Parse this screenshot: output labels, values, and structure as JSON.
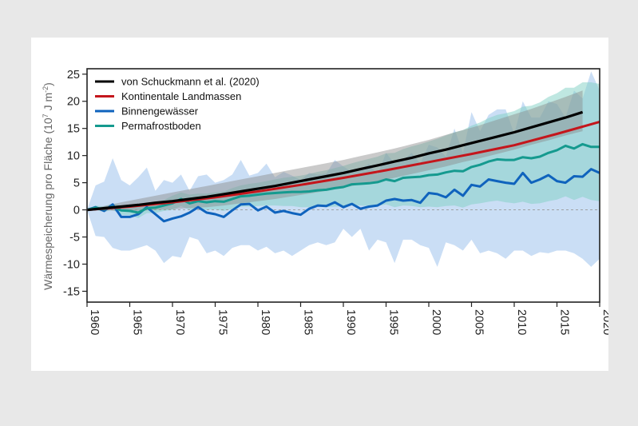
{
  "chart_data": {
    "type": "line",
    "xlim": [
      1960,
      2020
    ],
    "ylim": [
      -17,
      26
    ],
    "ylabel_main": "Wärmespeicherung pro Fläche (10",
    "ylabel_exp": "7",
    "ylabel_rest": " J m",
    "ylabel_exp2": "-2",
    "ylabel_end": ")",
    "x_ticks": [
      1960,
      1965,
      1970,
      1975,
      1980,
      1985,
      1990,
      1995,
      2000,
      2005,
      2010,
      2015,
      2020
    ],
    "x_tick_labels": [
      "1960",
      "1965",
      "1970",
      "1975",
      "1980",
      "1985",
      "1990",
      "1995",
      "2000",
      "2005",
      "2010",
      "2015",
      "2020"
    ],
    "y_ticks": [
      -15,
      -10,
      -5,
      0,
      5,
      10,
      15,
      20,
      25
    ],
    "y_tick_labels": [
      "-15",
      "-10",
      "-5",
      "0",
      "5",
      "10",
      "15",
      "20",
      "25"
    ],
    "legend_position": "top-left",
    "legend": [
      "von Schuckmann et al. (2020)",
      "Kontinentale Landmassen",
      "Binnengewässer",
      "Permafrostboden"
    ],
    "series": [
      {
        "name": "von Schuckmann et al. (2020)",
        "color": "#000000",
        "x": [
          1960,
          1962,
          1964,
          1966,
          1968,
          1970,
          1972,
          1974,
          1976,
          1978,
          1980,
          1982,
          1984,
          1986,
          1988,
          1990,
          1992,
          1994,
          1996,
          1998,
          2000,
          2002,
          2004,
          2006,
          2008,
          2010,
          2012,
          2014,
          2016,
          2018
        ],
        "y": [
          0,
          0.3,
          0.6,
          0.9,
          1.3,
          1.6,
          2.0,
          2.4,
          2.9,
          3.4,
          3.9,
          4.4,
          5.0,
          5.6,
          6.2,
          6.8,
          7.5,
          8.2,
          8.9,
          9.6,
          10.4,
          11.1,
          11.9,
          12.7,
          13.5,
          14.3,
          15.2,
          16.1,
          17.0,
          18.0
        ],
        "band_upper": [
          0,
          0.7,
          1.4,
          2.0,
          2.6,
          3.2,
          3.8,
          4.4,
          5.0,
          5.6,
          6.2,
          6.8,
          7.4,
          8.0,
          8.6,
          9.2,
          9.9,
          10.6,
          11.3,
          12.1,
          12.9,
          13.8,
          14.7,
          15.6,
          16.6,
          17.6,
          18.6,
          19.7,
          20.8,
          22.0
        ],
        "band_lower": [
          0,
          -0.1,
          -0.2,
          -0.2,
          0,
          0.1,
          0.3,
          0.5,
          0.8,
          1.2,
          1.6,
          2.0,
          2.5,
          3.0,
          3.5,
          4.1,
          4.7,
          5.3,
          5.9,
          6.6,
          7.3,
          8.0,
          8.8,
          9.5,
          10.3,
          11.1,
          12.0,
          12.8,
          13.7,
          14.5
        ]
      },
      {
        "name": "Kontinentale Landmassen",
        "color": "#c4161c",
        "x": [
          1960,
          1965,
          1970,
          1975,
          1980,
          1985,
          1990,
          1995,
          2000,
          2005,
          2010,
          2015,
          2020
        ],
        "y": [
          0,
          0.6,
          1.4,
          2.3,
          3.4,
          4.6,
          5.9,
          7.3,
          8.8,
          10.3,
          11.9,
          14.0,
          16.2
        ]
      },
      {
        "name": "Binnengewässer",
        "color": "#0f63bd",
        "x": [
          1960,
          1961,
          1962,
          1963,
          1964,
          1965,
          1966,
          1967,
          1968,
          1969,
          1970,
          1971,
          1972,
          1973,
          1974,
          1975,
          1976,
          1977,
          1978,
          1979,
          1980,
          1981,
          1982,
          1983,
          1984,
          1985,
          1986,
          1987,
          1988,
          1989,
          1990,
          1991,
          1992,
          1993,
          1994,
          1995,
          1996,
          1997,
          1998,
          1999,
          2000,
          2001,
          2002,
          2003,
          2004,
          2005,
          2006,
          2007,
          2008,
          2009,
          2010,
          2011,
          2012,
          2013,
          2014,
          2015,
          2016,
          2017,
          2018,
          2019,
          2020
        ],
        "y": [
          0,
          0.5,
          -0.2,
          1.0,
          -1.3,
          -1.3,
          -0.8,
          0.5,
          -0.8,
          -2.1,
          -1.6,
          -1.2,
          -0.5,
          0.5,
          -0.5,
          -0.8,
          -1.3,
          -0.1,
          1.0,
          1.1,
          -0.1,
          0.6,
          -0.5,
          -0.2,
          -0.6,
          -0.9,
          0.2,
          0.8,
          0.7,
          1.4,
          0.5,
          1.1,
          0.2,
          0.6,
          0.8,
          1.7,
          2.0,
          1.7,
          1.8,
          1.3,
          3.1,
          2.9,
          2.3,
          3.7,
          2.6,
          4.6,
          4.3,
          5.6,
          5.3,
          5.0,
          4.8,
          6.8,
          5.0,
          5.6,
          6.4,
          5.3,
          5.0,
          6.2,
          6.1,
          7.5,
          6.8
        ],
        "band_upper": [
          0,
          4.5,
          5.2,
          9.5,
          5.5,
          4.5,
          6.0,
          7.8,
          3.5,
          5.5,
          5.0,
          6.5,
          3.5,
          6.2,
          6.5,
          5.0,
          5.5,
          6.5,
          9.2,
          6.3,
          6.8,
          8.5,
          6.0,
          7.0,
          6.3,
          5.5,
          6.8,
          6.5,
          6.7,
          9.2,
          8.0,
          7.0,
          7.5,
          8.5,
          6.5,
          10.5,
          8.5,
          9.2,
          10.5,
          8.5,
          12.0,
          11.5,
          9.8,
          15.0,
          10.5,
          18.0,
          14.5,
          17.5,
          18.5,
          18.5,
          14.0,
          20.0,
          17.0,
          17.0,
          20.0,
          19.5,
          17.0,
          22.0,
          20.5,
          25.5,
          22.0
        ],
        "band_lower": [
          0,
          -4.8,
          -5.0,
          -7.0,
          -7.5,
          -7.5,
          -7.0,
          -6.5,
          -7.5,
          -9.8,
          -8.5,
          -8.8,
          -5.0,
          -5.5,
          -8.0,
          -7.5,
          -8.5,
          -7.0,
          -6.5,
          -6.5,
          -7.5,
          -6.8,
          -8.0,
          -7.5,
          -8.5,
          -7.5,
          -6.5,
          -6.0,
          -6.5,
          -6.0,
          -3.5,
          -5.0,
          -3.5,
          -7.5,
          -5.5,
          -6.0,
          -9.8,
          -5.5,
          -5.5,
          -6.5,
          -7.0,
          -10.5,
          -6.0,
          -6.5,
          -7.5,
          -5.5,
          -8.0,
          -7.5,
          -8.0,
          -9.0,
          -7.5,
          -7.5,
          -8.5,
          -7.8,
          -8.0,
          -7.5,
          -7.5,
          -8.0,
          -9.0,
          -10.5,
          -9.0
        ]
      },
      {
        "name": "Permafrostboden",
        "color": "#159a8f",
        "x": [
          1960,
          1961,
          1962,
          1963,
          1964,
          1965,
          1966,
          1967,
          1968,
          1969,
          1970,
          1971,
          1972,
          1973,
          1974,
          1975,
          1976,
          1977,
          1978,
          1979,
          1980,
          1981,
          1982,
          1983,
          1984,
          1985,
          1986,
          1987,
          1988,
          1989,
          1990,
          1991,
          1992,
          1993,
          1994,
          1995,
          1996,
          1997,
          1998,
          1999,
          2000,
          2001,
          2002,
          2003,
          2004,
          2005,
          2006,
          2007,
          2008,
          2009,
          2010,
          2011,
          2012,
          2013,
          2014,
          2015,
          2016,
          2017,
          2018,
          2019,
          2020
        ],
        "y": [
          0,
          0.4,
          0.1,
          0.6,
          -0.1,
          -0.2,
          -0.5,
          0.3,
          0.4,
          0.8,
          1.2,
          2.0,
          1.2,
          1.6,
          1.4,
          1.6,
          1.5,
          2.0,
          2.5,
          2.6,
          2.8,
          3.0,
          3.1,
          3.2,
          3.3,
          3.3,
          3.4,
          3.6,
          3.7,
          4.0,
          4.2,
          4.7,
          4.8,
          4.9,
          5.1,
          5.6,
          5.3,
          5.9,
          6.0,
          6.1,
          6.4,
          6.5,
          6.9,
          7.2,
          7.1,
          7.9,
          8.3,
          8.9,
          9.3,
          9.2,
          9.2,
          9.7,
          9.5,
          9.8,
          10.5,
          11.0,
          11.8,
          11.3,
          12.1,
          11.6,
          11.6
        ],
        "band_upper": [
          0,
          0.8,
          0.6,
          1.2,
          0.8,
          0.8,
          0.8,
          1.2,
          1.4,
          1.8,
          2.6,
          3.2,
          2.8,
          3.0,
          3.0,
          3.2,
          3.4,
          4.0,
          4.5,
          4.8,
          5.0,
          5.3,
          5.6,
          5.9,
          6.1,
          6.3,
          6.6,
          7.0,
          7.3,
          7.7,
          8.1,
          8.6,
          9.0,
          9.4,
          9.8,
          10.4,
          10.5,
          11.2,
          11.7,
          12.1,
          12.6,
          13.1,
          13.7,
          14.3,
          14.7,
          15.5,
          16.1,
          16.9,
          17.5,
          17.8,
          18.2,
          19.0,
          19.2,
          19.8,
          20.8,
          21.5,
          22.5,
          22.5,
          23.5,
          23.5,
          23.2
        ],
        "band_lower": [
          0,
          0,
          -0.4,
          0,
          -0.9,
          -1.0,
          -1.5,
          -0.6,
          -0.6,
          -0.2,
          0,
          0.7,
          0,
          0.3,
          0,
          0.1,
          -0.2,
          0.2,
          0.6,
          0.6,
          0.7,
          0.8,
          0.8,
          0.7,
          0.7,
          0.5,
          0.5,
          0.6,
          0.5,
          0.6,
          0.6,
          0.9,
          0.8,
          0.7,
          0.7,
          1.0,
          0.5,
          0.8,
          0.7,
          0.5,
          0.6,
          0.5,
          0.7,
          0.8,
          0.4,
          1.0,
          1.2,
          1.5,
          1.7,
          1.4,
          1.2,
          1.5,
          1.1,
          1.2,
          1.6,
          1.9,
          2.5,
          1.8,
          2.4,
          1.8,
          1.6
        ]
      }
    ]
  }
}
